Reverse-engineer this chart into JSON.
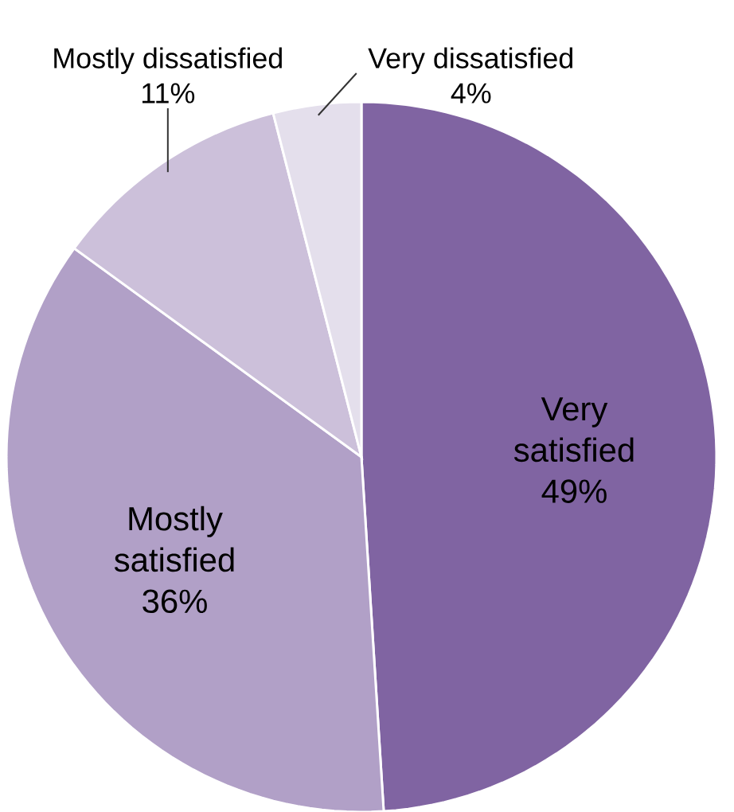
{
  "chart_data": {
    "type": "pie",
    "categories": [
      "Very satisfied",
      "Mostly satisfied",
      "Mostly dissatisfied",
      "Very dissatisfied"
    ],
    "values": [
      49,
      36,
      11,
      4
    ],
    "value_labels": [
      "49%",
      "36%",
      "11%",
      "4%"
    ],
    "colors": [
      "#8064a2",
      "#b1a0c7",
      "#ccc0da",
      "#e4dfec"
    ]
  }
}
